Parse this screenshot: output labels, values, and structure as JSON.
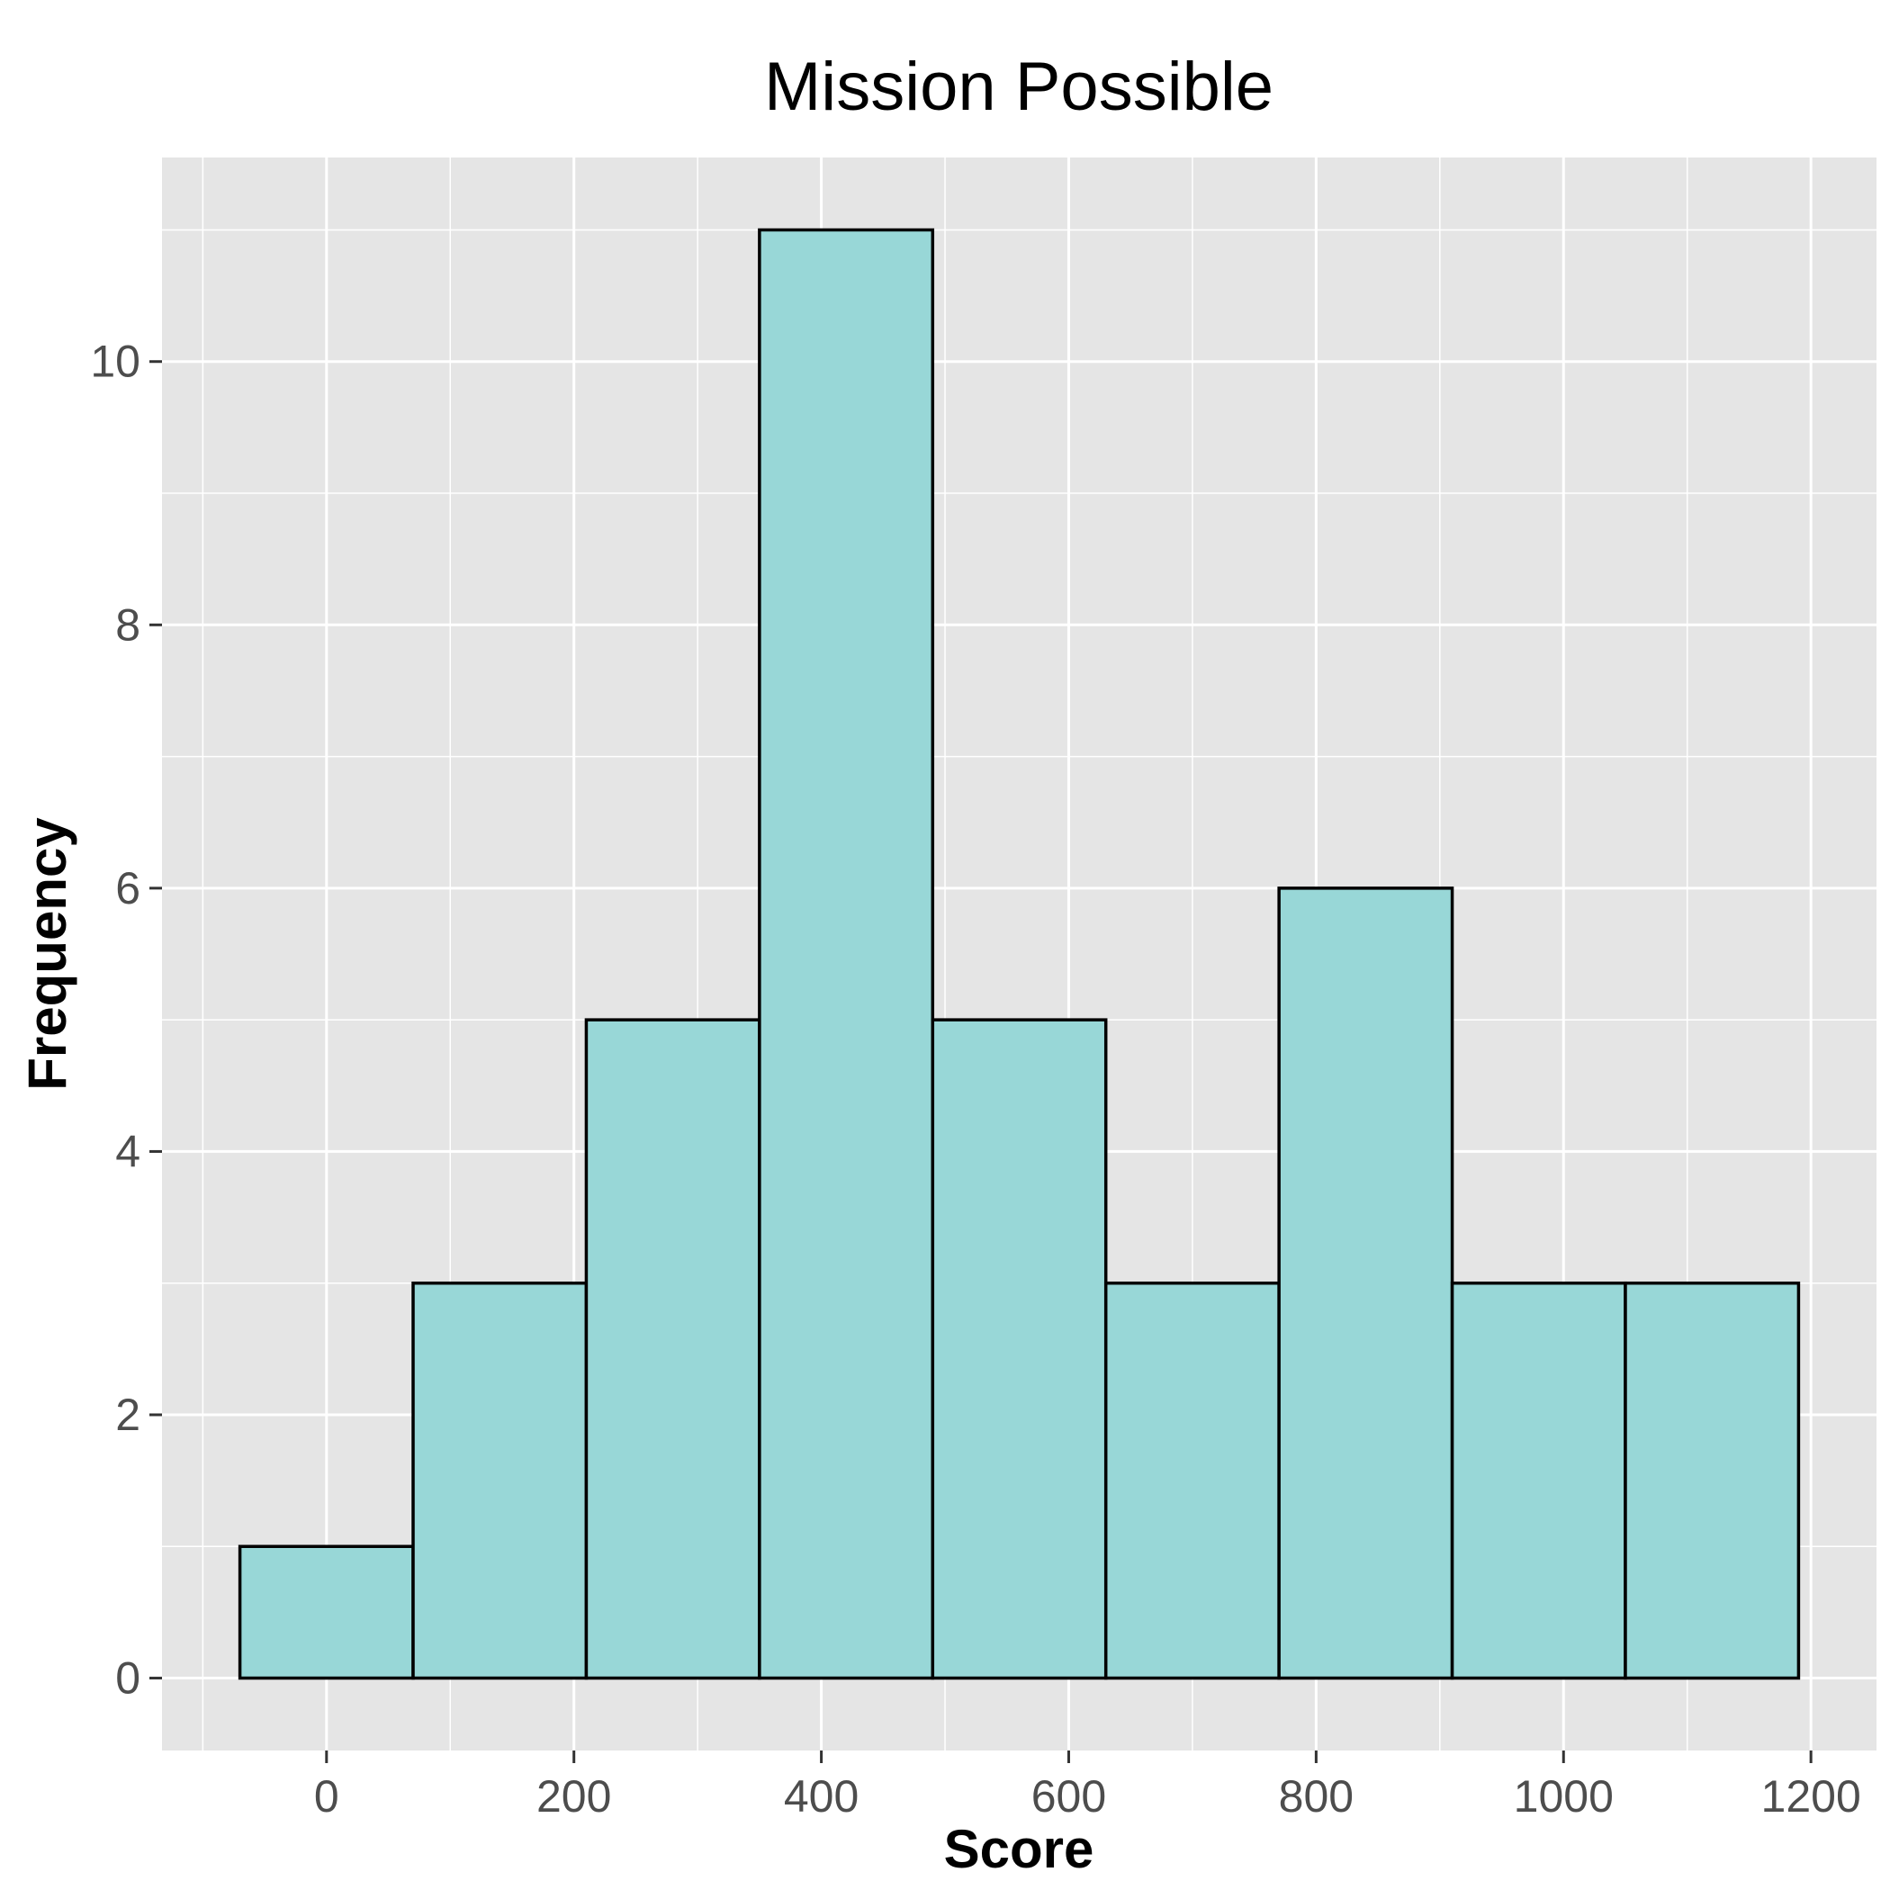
{
  "chart_data": {
    "type": "bar",
    "title": "Mission Possible",
    "xlabel": "Score",
    "ylabel": "Frequency",
    "bins": [
      {
        "start": -70,
        "end": 70,
        "count": 1
      },
      {
        "start": 70,
        "end": 210,
        "count": 3
      },
      {
        "start": 210,
        "end": 350,
        "count": 5
      },
      {
        "start": 350,
        "end": 490,
        "count": 11
      },
      {
        "start": 490,
        "end": 630,
        "count": 5
      },
      {
        "start": 630,
        "end": 770,
        "count": 3
      },
      {
        "start": 770,
        "end": 910,
        "count": 6
      },
      {
        "start": 910,
        "end": 1050,
        "count": 3
      },
      {
        "start": 1050,
        "end": 1190,
        "count": 3
      }
    ],
    "xlim": [
      -133,
      1253
    ],
    "ylim": [
      -0.55,
      11.55
    ],
    "x_ticks": [
      0,
      200,
      400,
      600,
      800,
      1000,
      1200
    ],
    "x_tick_labels": [
      "0",
      "200",
      "400",
      "600",
      "800",
      "1000",
      "1200"
    ],
    "y_ticks": [
      0,
      2,
      4,
      6,
      8,
      10
    ],
    "y_tick_labels": [
      "0",
      "2",
      "4",
      "6",
      "8",
      "10"
    ],
    "grid": true,
    "colors": {
      "bar_fill": "#98d7d7",
      "bar_stroke": "#000000",
      "panel_background": "#e5e5e5",
      "grid": "#ffffff"
    }
  }
}
